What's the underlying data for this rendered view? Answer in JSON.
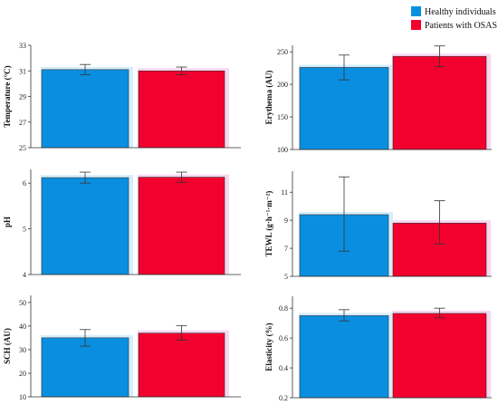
{
  "legend": {
    "position": "top-right",
    "items": [
      {
        "label": "Healthy individuals",
        "color": "#0a8fe0"
      },
      {
        "label": "Patients with OSAS",
        "color": "#f2002e"
      }
    ]
  },
  "chart_data": [
    {
      "type": "bar",
      "ylabel": "Temperature (°C)",
      "ylim": [
        25,
        33
      ],
      "yticks": [
        25,
        27,
        29,
        31,
        33
      ],
      "series": [
        {
          "name": "Healthy individuals",
          "value": 31.1,
          "error": [
            30.7,
            31.5
          ]
        },
        {
          "name": "Patients with OSAS",
          "value": 31.0,
          "error": [
            30.7,
            31.3
          ]
        }
      ]
    },
    {
      "type": "bar",
      "ylabel": "Erythema (AU)",
      "ylim": [
        100,
        260
      ],
      "yticks": [
        100,
        150,
        200,
        250
      ],
      "series": [
        {
          "name": "Healthy individuals",
          "value": 226,
          "error": [
            207,
            245
          ]
        },
        {
          "name": "Patients with OSAS",
          "value": 243,
          "error": [
            227,
            259
          ]
        }
      ]
    },
    {
      "type": "bar",
      "ylabel": "pH",
      "ylim": [
        4,
        6.3
      ],
      "yticks": [
        4,
        5,
        6
      ],
      "series": [
        {
          "name": "Healthy individuals",
          "value": 6.12,
          "error": [
            6.0,
            6.24
          ]
        },
        {
          "name": "Patients with OSAS",
          "value": 6.13,
          "error": [
            6.02,
            6.24
          ]
        }
      ]
    },
    {
      "type": "bar",
      "ylabel": "TEWL (g·h⁻¹·m⁻²)",
      "ylim": [
        5,
        12.5
      ],
      "yticks": [
        5,
        7,
        9,
        11
      ],
      "series": [
        {
          "name": "Healthy individuals",
          "value": 9.4,
          "error": [
            6.8,
            12.1
          ]
        },
        {
          "name": "Patients with OSAS",
          "value": 8.8,
          "error": [
            7.3,
            10.4
          ]
        }
      ]
    },
    {
      "type": "bar",
      "ylabel": "SCH (AU)",
      "ylim": [
        10,
        53
      ],
      "yticks": [
        10,
        20,
        30,
        40,
        50
      ],
      "series": [
        {
          "name": "Healthy individuals",
          "value": 35,
          "error": [
            31.5,
            38.5
          ]
        },
        {
          "name": "Patients with OSAS",
          "value": 37,
          "error": [
            34,
            40.2
          ]
        }
      ]
    },
    {
      "type": "bar",
      "ylabel": "Elasticity (%)",
      "ylim": [
        0.2,
        0.88
      ],
      "yticks": [
        0.2,
        0.4,
        0.6,
        0.8
      ],
      "series": [
        {
          "name": "Healthy individuals",
          "value": 0.75,
          "error": [
            0.715,
            0.79
          ]
        },
        {
          "name": "Patients with OSAS",
          "value": 0.765,
          "error": [
            0.735,
            0.8
          ]
        }
      ]
    }
  ]
}
